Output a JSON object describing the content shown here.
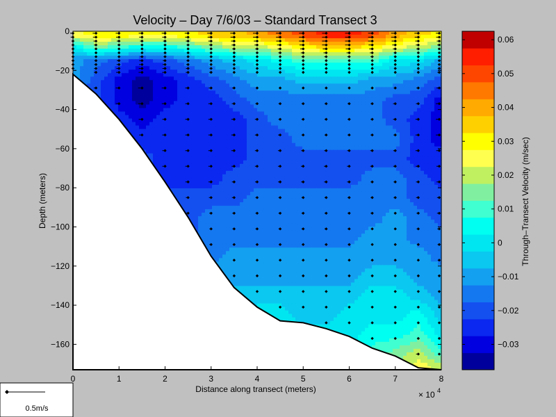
{
  "chart_data": {
    "type": "heatmap",
    "title": "Velocity – Day 7/6/03 – Standard Transect 3",
    "xlabel": "Distance along transect (meters)",
    "ylabel": "Depth (meters)",
    "x_multiplier_label": "× 10",
    "x_multiplier_exponent": "4",
    "xlim": [
      0,
      80000
    ],
    "ylim": [
      -173,
      0
    ],
    "x_ticks": [
      {
        "value": 0,
        "label": "0"
      },
      {
        "value": 10000,
        "label": "1"
      },
      {
        "value": 20000,
        "label": "2"
      },
      {
        "value": 30000,
        "label": "3"
      },
      {
        "value": 40000,
        "label": "4"
      },
      {
        "value": 50000,
        "label": "5"
      },
      {
        "value": 60000,
        "label": "6"
      },
      {
        "value": 70000,
        "label": "7"
      },
      {
        "value": 80000,
        "label": "8"
      }
    ],
    "y_ticks": [
      {
        "value": 0,
        "label": "0"
      },
      {
        "value": -20,
        "label": "−20"
      },
      {
        "value": -40,
        "label": "−40"
      },
      {
        "value": -60,
        "label": "−60"
      },
      {
        "value": -80,
        "label": "−80"
      },
      {
        "value": -100,
        "label": "−100"
      },
      {
        "value": -120,
        "label": "−120"
      },
      {
        "value": -140,
        "label": "−140"
      },
      {
        "value": -160,
        "label": "−160"
      }
    ],
    "bottom_profile": [
      [
        0,
        -22
      ],
      [
        5000,
        -32
      ],
      [
        10000,
        -45
      ],
      [
        15000,
        -60
      ],
      [
        20000,
        -77
      ],
      [
        25000,
        -95
      ],
      [
        30000,
        -115
      ],
      [
        35000,
        -131
      ],
      [
        40000,
        -141
      ],
      [
        45000,
        -148
      ],
      [
        50000,
        -149
      ],
      [
        55000,
        -152
      ],
      [
        60000,
        -156
      ],
      [
        65000,
        -162
      ],
      [
        70000,
        -166
      ],
      [
        75000,
        -172
      ],
      [
        80000,
        -173
      ]
    ],
    "stations_x": [
      0,
      5000,
      10000,
      15000,
      20000,
      25000,
      30000,
      35000,
      40000,
      45000,
      50000,
      55000,
      60000,
      65000,
      70000,
      75000,
      80000
    ],
    "velocity_field": {
      "x": [
        0,
        5000,
        10000,
        15000,
        20000,
        25000,
        30000,
        35000,
        40000,
        45000,
        50000,
        55000,
        60000,
        65000,
        70000,
        75000,
        80000
      ],
      "depth": [
        -2,
        -8,
        -15,
        -25,
        -35,
        -45,
        -55,
        -65,
        -75,
        -85,
        -95,
        -105,
        -115,
        -125,
        -135,
        -145,
        -155,
        -165,
        -171
      ],
      "values_m_per_s": [
        [
          0.025,
          0.03,
          0.03,
          0.03,
          0.03,
          0.03,
          0.035,
          0.035,
          0.04,
          0.045,
          0.05,
          0.055,
          0.055,
          0.05,
          0.04,
          0.035,
          0.03
        ],
        [
          0.0,
          0.015,
          0.01,
          0.005,
          0.005,
          0.01,
          0.015,
          0.02,
          0.02,
          0.025,
          0.03,
          0.035,
          0.035,
          0.03,
          0.025,
          0.02,
          0.015
        ],
        [
          -0.01,
          -0.015,
          -0.02,
          -0.025,
          -0.02,
          -0.015,
          -0.01,
          -0.005,
          0.0,
          0.005,
          0.01,
          0.01,
          0.01,
          0.01,
          0.0,
          0.0,
          -0.01
        ],
        [
          -0.01,
          -0.02,
          -0.03,
          -0.035,
          -0.03,
          -0.025,
          -0.02,
          -0.015,
          -0.01,
          -0.01,
          -0.005,
          -0.005,
          -0.005,
          -0.01,
          -0.01,
          -0.015,
          -0.02
        ],
        [
          -0.02,
          -0.02,
          -0.03,
          -0.035,
          -0.03,
          -0.025,
          -0.025,
          -0.02,
          -0.015,
          -0.015,
          -0.015,
          -0.015,
          -0.015,
          -0.015,
          -0.02,
          -0.02,
          -0.03
        ],
        [
          -0.02,
          -0.02,
          -0.025,
          -0.03,
          -0.025,
          -0.025,
          -0.025,
          -0.025,
          -0.02,
          -0.015,
          -0.015,
          -0.015,
          -0.015,
          -0.015,
          -0.02,
          -0.025,
          -0.03
        ],
        [
          -0.02,
          -0.02,
          -0.02,
          -0.025,
          -0.025,
          -0.025,
          -0.025,
          -0.025,
          -0.02,
          -0.02,
          -0.015,
          -0.015,
          -0.015,
          -0.015,
          -0.015,
          -0.025,
          -0.03
        ],
        [
          -0.02,
          -0.02,
          -0.02,
          -0.02,
          -0.025,
          -0.025,
          -0.025,
          -0.025,
          -0.02,
          -0.02,
          -0.02,
          -0.02,
          -0.02,
          -0.02,
          -0.02,
          -0.025,
          -0.025
        ],
        [
          -0.02,
          -0.02,
          -0.02,
          -0.02,
          -0.025,
          -0.025,
          -0.025,
          -0.02,
          -0.02,
          -0.02,
          -0.02,
          -0.02,
          -0.02,
          -0.015,
          -0.015,
          -0.02,
          -0.025
        ],
        [
          -0.02,
          -0.02,
          -0.02,
          -0.02,
          -0.02,
          -0.02,
          -0.02,
          -0.02,
          -0.015,
          -0.015,
          -0.015,
          -0.015,
          -0.015,
          -0.015,
          -0.015,
          -0.02,
          -0.02
        ],
        [
          -0.02,
          -0.02,
          -0.02,
          -0.02,
          -0.02,
          -0.02,
          -0.015,
          -0.015,
          -0.015,
          -0.015,
          -0.015,
          -0.015,
          -0.015,
          -0.015,
          -0.01,
          -0.015,
          -0.02
        ],
        [
          -0.02,
          -0.02,
          -0.02,
          -0.02,
          -0.02,
          -0.02,
          -0.015,
          -0.015,
          -0.015,
          -0.015,
          -0.015,
          -0.015,
          -0.015,
          -0.01,
          -0.01,
          -0.015,
          -0.015
        ],
        [
          -0.02,
          -0.02,
          -0.02,
          -0.02,
          -0.02,
          -0.02,
          -0.015,
          -0.01,
          -0.01,
          -0.01,
          -0.01,
          -0.01,
          -0.01,
          -0.01,
          -0.01,
          -0.01,
          -0.015
        ],
        [
          -0.02,
          -0.02,
          -0.02,
          -0.02,
          -0.02,
          -0.02,
          -0.01,
          -0.01,
          -0.01,
          -0.01,
          -0.01,
          -0.01,
          -0.01,
          -0.005,
          -0.005,
          -0.01,
          -0.01
        ],
        [
          -0.02,
          -0.02,
          -0.02,
          -0.02,
          -0.02,
          -0.02,
          -0.01,
          -0.005,
          -0.005,
          -0.005,
          -0.005,
          -0.005,
          -0.005,
          0.0,
          0.0,
          -0.005,
          -0.01
        ],
        [
          -0.02,
          -0.02,
          -0.02,
          -0.02,
          -0.02,
          -0.02,
          -0.01,
          -0.005,
          0.0,
          0.0,
          -0.005,
          -0.005,
          0.0,
          0.0,
          0.0,
          0.005,
          -0.005
        ],
        [
          -0.02,
          -0.02,
          -0.02,
          -0.02,
          -0.02,
          -0.02,
          -0.01,
          -0.005,
          0.0,
          0.0,
          0.0,
          0.0,
          0.0,
          0.005,
          0.005,
          0.01,
          0.0
        ],
        [
          -0.02,
          -0.02,
          -0.02,
          -0.02,
          -0.02,
          -0.02,
          -0.01,
          -0.005,
          0.0,
          0.0,
          0.0,
          0.0,
          0.0,
          0.01,
          0.015,
          0.02,
          0.01
        ],
        [
          -0.02,
          -0.02,
          -0.02,
          -0.02,
          -0.02,
          -0.02,
          -0.01,
          -0.005,
          0.0,
          0.0,
          0.0,
          0.0,
          0.0,
          0.01,
          0.015,
          0.025,
          0.02
        ]
      ]
    },
    "colorbar": {
      "label": "Through–Transect Velocity (m/sec)",
      "min": -0.0375,
      "max": 0.0625,
      "step": 0.005,
      "ticks": [
        {
          "value": 0.06,
          "label": "0.06"
        },
        {
          "value": 0.05,
          "label": "0.05"
        },
        {
          "value": 0.04,
          "label": "0.04"
        },
        {
          "value": 0.03,
          "label": "0.03"
        },
        {
          "value": 0.02,
          "label": "0.02"
        },
        {
          "value": 0.01,
          "label": "0.01"
        },
        {
          "value": 0.0,
          "label": "0"
        },
        {
          "value": -0.01,
          "label": "−0.01"
        },
        {
          "value": -0.02,
          "label": "−0.02"
        },
        {
          "value": -0.03,
          "label": "−0.03"
        }
      ],
      "colors": [
        "#00009c",
        "#0000e0",
        "#0a28f0",
        "#1450f0",
        "#1478f0",
        "#14a0f0",
        "#0ac8f0",
        "#00e6f0",
        "#00fff0",
        "#40ffd0",
        "#80f0a0",
        "#c0f060",
        "#ffff50",
        "#ffff00",
        "#ffd000",
        "#ffaa00",
        "#ff7800",
        "#ff4600",
        "#ff1e00",
        "#c00000"
      ]
    },
    "scale_arrow_label": "0.5m/s",
    "grid": false,
    "legend": "none"
  }
}
